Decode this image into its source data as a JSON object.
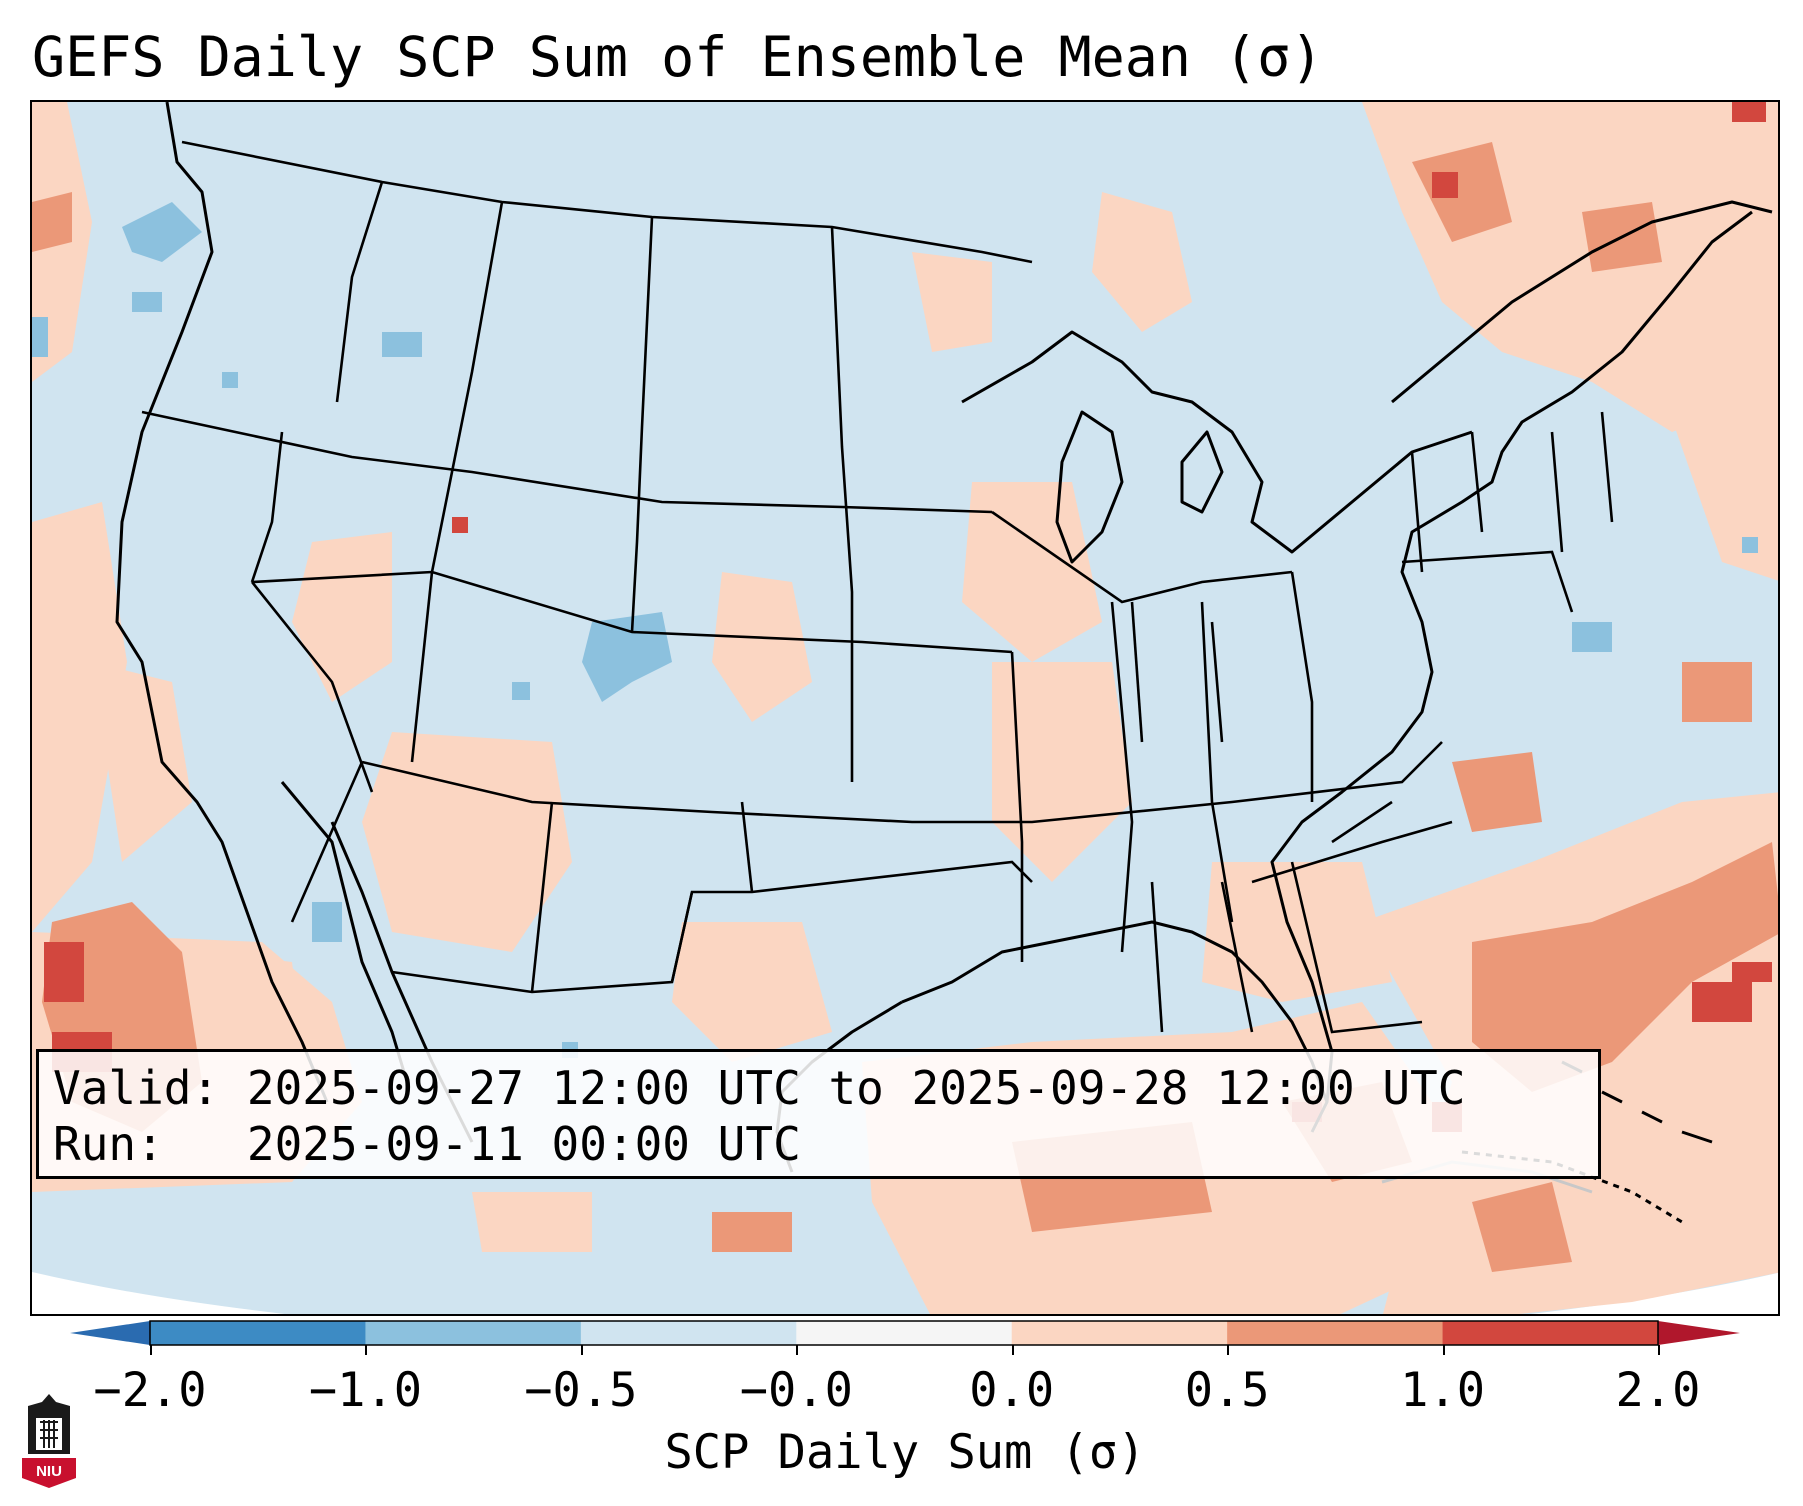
{
  "title": "GEFS Daily SCP Sum of Ensemble Mean (σ)",
  "info": {
    "valid_label": "Valid:",
    "valid_value": "2025-09-27 12:00 UTC to 2025-09-28 12:00 UTC",
    "run_label": "Run:",
    "run_value": "2025-09-11 00:00 UTC"
  },
  "colorbar": {
    "label": "SCP Daily Sum (σ)",
    "ticks": [
      "−2.0",
      "−1.0",
      "−0.5",
      "−0.0",
      "0.0",
      "0.5",
      "1.0",
      "2.0"
    ],
    "bin_colors": [
      "#3d8bc4",
      "#8cc1de",
      "#d0e4f0",
      "#f5f5f5",
      "#fbd6c2",
      "#eb9878",
      "#d2473e"
    ],
    "extend_low_color": "#2a6bb0",
    "extend_high_color": "#b0172c"
  },
  "colors": {
    "neutral_negative": "#d0e4f0",
    "weak_positive": "#fbd6c2",
    "moderate_positive": "#eb9878",
    "strong_positive": "#d2473e",
    "moderate_negative": "#8cc1de"
  },
  "logo": {
    "text": "NIU"
  }
}
